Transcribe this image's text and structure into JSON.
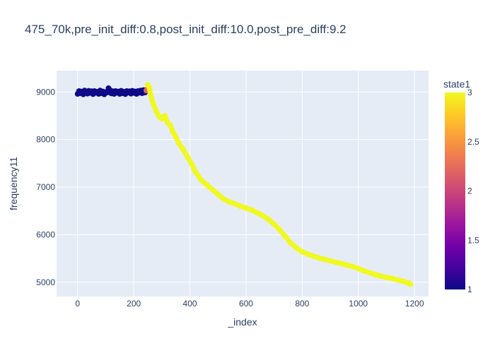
{
  "chart_data": {
    "type": "scatter",
    "title": "475_70k,pre_init_diff:0.8,post_init_diff:10.0,post_pre_diff:9.2",
    "xlabel": "_index",
    "ylabel": "frequency11",
    "xlim": [
      -75,
      1250
    ],
    "ylim": [
      4700,
      9450
    ],
    "x_ticks": [
      0,
      200,
      400,
      600,
      800,
      1000,
      1200
    ],
    "y_ticks": [
      5000,
      6000,
      7000,
      8000,
      9000
    ],
    "grid": true,
    "colorbar": {
      "title": "state1",
      "range": [
        1,
        3
      ],
      "ticks": [
        1,
        1.5,
        2,
        2.5,
        3
      ],
      "colorscale": [
        "#0d0887",
        "#46039f",
        "#7201a8",
        "#9c179e",
        "#bd3786",
        "#d8576b",
        "#ed7953",
        "#fb9f3a",
        "#fdca26",
        "#f0f921"
      ]
    },
    "series": [
      {
        "state": 1,
        "color": "#0d0887",
        "points": [
          [
            0,
            8960
          ],
          [
            5,
            9020
          ],
          [
            10,
            8975
          ],
          [
            15,
            9010
          ],
          [
            20,
            8950
          ],
          [
            25,
            9030
          ],
          [
            30,
            8990
          ],
          [
            35,
            8965
          ],
          [
            40,
            9025
          ],
          [
            45,
            8980
          ],
          [
            50,
            9015
          ],
          [
            55,
            8955
          ],
          [
            60,
            9020
          ],
          [
            65,
            8985
          ],
          [
            70,
            9005
          ],
          [
            75,
            8960
          ],
          [
            80,
            9030
          ],
          [
            85,
            8975
          ],
          [
            90,
            9010
          ],
          [
            95,
            8950
          ],
          [
            100,
            9000
          ],
          [
            105,
            8990
          ],
          [
            110,
            9080
          ],
          [
            115,
            9040
          ],
          [
            120,
            8970
          ],
          [
            125,
            9015
          ],
          [
            130,
            8960
          ],
          [
            135,
            9020
          ],
          [
            140,
            8985
          ],
          [
            145,
            9010
          ],
          [
            150,
            8960
          ],
          [
            155,
            9025
          ],
          [
            160,
            8975
          ],
          [
            165,
            9005
          ],
          [
            170,
            8955
          ],
          [
            175,
            9020
          ],
          [
            180,
            8990
          ],
          [
            185,
            9015
          ],
          [
            190,
            8965
          ],
          [
            195,
            9025
          ],
          [
            200,
            8980
          ],
          [
            205,
            9010
          ],
          [
            210,
            8960
          ],
          [
            215,
            9020
          ],
          [
            220,
            8985
          ],
          [
            225,
            9030
          ],
          [
            230,
            8975
          ],
          [
            235,
            9040
          ],
          [
            240,
            8990
          ]
        ]
      },
      {
        "state": 2,
        "color": "#e56b5d",
        "points": [
          [
            245,
            9030
          ],
          [
            248,
            9060
          ]
        ]
      },
      {
        "state": 3,
        "color": "#f0f921",
        "points": [
          [
            250,
            9150
          ],
          [
            255,
            9100
          ],
          [
            260,
            8950
          ],
          [
            265,
            8830
          ],
          [
            270,
            8740
          ],
          [
            280,
            8600
          ],
          [
            290,
            8480
          ],
          [
            300,
            8440
          ],
          [
            310,
            8500
          ],
          [
            320,
            8360
          ],
          [
            330,
            8300
          ],
          [
            340,
            8150
          ],
          [
            350,
            8050
          ],
          [
            360,
            7930
          ],
          [
            375,
            7800
          ],
          [
            390,
            7650
          ],
          [
            405,
            7500
          ],
          [
            420,
            7320
          ],
          [
            440,
            7150
          ],
          [
            460,
            7050
          ],
          [
            480,
            6950
          ],
          [
            500,
            6850
          ],
          [
            520,
            6750
          ],
          [
            540,
            6690
          ],
          [
            560,
            6650
          ],
          [
            580,
            6600
          ],
          [
            600,
            6560
          ],
          [
            620,
            6520
          ],
          [
            640,
            6460
          ],
          [
            660,
            6400
          ],
          [
            680,
            6320
          ],
          [
            700,
            6220
          ],
          [
            720,
            6100
          ],
          [
            740,
            5960
          ],
          [
            760,
            5820
          ],
          [
            780,
            5720
          ],
          [
            800,
            5640
          ],
          [
            820,
            5590
          ],
          [
            840,
            5550
          ],
          [
            860,
            5510
          ],
          [
            880,
            5480
          ],
          [
            900,
            5450
          ],
          [
            920,
            5420
          ],
          [
            940,
            5390
          ],
          [
            960,
            5360
          ],
          [
            980,
            5330
          ],
          [
            1000,
            5290
          ],
          [
            1020,
            5240
          ],
          [
            1040,
            5200
          ],
          [
            1060,
            5160
          ],
          [
            1080,
            5130
          ],
          [
            1100,
            5100
          ],
          [
            1120,
            5080
          ],
          [
            1140,
            5050
          ],
          [
            1160,
            5020
          ],
          [
            1180,
            4980
          ],
          [
            1185,
            4960
          ]
        ]
      }
    ]
  }
}
